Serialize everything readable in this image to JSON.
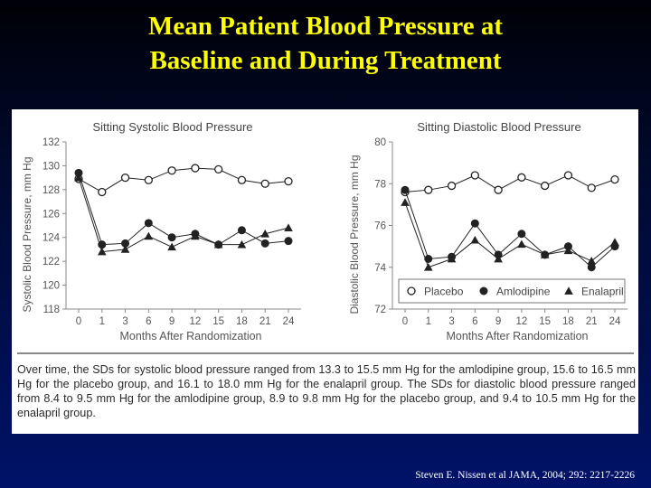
{
  "slide": {
    "title_line1": "Mean Patient Blood Pressure at",
    "title_line2": "Baseline and During Treatment",
    "citation": "Steven E. Nissen et al JAMA,  2004; 292: 2217-2226"
  },
  "caption": "Over time, the SDs for systolic blood pressure ranged from 13.3 to 15.5 mm Hg for the amlodipine group, 15.6 to 16.5 mm Hg for the placebo group, and 16.1 to 18.0 mm Hg for the enalapril group. The SDs for diastolic blood pressure ranged from 8.4 to 9.5 mm Hg for the amlodipine group, 8.9 to 9.8 mm Hg for the placebo group, and 9.4 to 10.5 mm Hg for the enalapril group.",
  "legend": {
    "placement": "bottom-right of diastolic panel",
    "entries": [
      {
        "label": "Placebo",
        "marker": "open-circle"
      },
      {
        "label": "Amlodipine",
        "marker": "filled-circle"
      },
      {
        "label": "Enalapril",
        "marker": "filled-triangle"
      }
    ]
  },
  "colors": {
    "title": "#ffff00",
    "series_stroke": "#222222",
    "background_top": "#000006",
    "background_bottom": "#001268"
  },
  "chart_data": [
    {
      "type": "line",
      "title": "Sitting Systolic Blood Pressure",
      "xlabel": "Months After Randomization",
      "ylabel": "Systolic Blood Pressure, mm Hg",
      "x": [
        0,
        1,
        3,
        6,
        9,
        12,
        15,
        18,
        21,
        24
      ],
      "x_tick_labels": [
        "0",
        "1",
        "3",
        "6",
        "9",
        "12",
        "15",
        "18",
        "21",
        "24"
      ],
      "ylim": [
        118,
        132
      ],
      "y_ticks": [
        118,
        120,
        122,
        124,
        126,
        128,
        130,
        132
      ],
      "grid": false,
      "series": [
        {
          "name": "Placebo",
          "marker": "open-circle",
          "values": [
            128.9,
            127.8,
            129.0,
            128.8,
            129.6,
            129.8,
            129.7,
            128.8,
            128.5,
            128.7
          ]
        },
        {
          "name": "Amlodipine",
          "marker": "filled-circle",
          "values": [
            129.4,
            123.4,
            123.5,
            125.2,
            124.0,
            124.3,
            123.4,
            124.6,
            123.5,
            123.7
          ]
        },
        {
          "name": "Enalapril",
          "marker": "filled-triangle",
          "values": [
            129.0,
            122.8,
            123.0,
            124.1,
            123.2,
            124.1,
            123.4,
            123.4,
            124.3,
            124.8
          ]
        }
      ]
    },
    {
      "type": "line",
      "title": "Sitting Diastolic Blood Pressure",
      "xlabel": "Months After Randomization",
      "ylabel": "Diastolic Blood Pressure, mm Hg",
      "x": [
        0,
        1,
        3,
        6,
        9,
        12,
        15,
        18,
        21,
        24
      ],
      "x_tick_labels": [
        "0",
        "1",
        "3",
        "6",
        "9",
        "12",
        "15",
        "18",
        "21",
        "24"
      ],
      "ylim": [
        72,
        80
      ],
      "y_ticks": [
        72,
        74,
        76,
        78,
        80
      ],
      "grid": false,
      "series": [
        {
          "name": "Placebo",
          "marker": "open-circle",
          "values": [
            77.6,
            77.7,
            77.9,
            78.4,
            77.7,
            78.3,
            77.9,
            78.4,
            77.8,
            78.2
          ]
        },
        {
          "name": "Amlodipine",
          "marker": "filled-circle",
          "values": [
            77.7,
            74.4,
            74.5,
            76.1,
            74.6,
            75.6,
            74.6,
            75.0,
            74.0,
            75.0
          ]
        },
        {
          "name": "Enalapril",
          "marker": "filled-triangle",
          "values": [
            77.1,
            74.0,
            74.4,
            75.3,
            74.4,
            75.1,
            74.6,
            74.8,
            74.3,
            75.2
          ]
        }
      ]
    }
  ]
}
